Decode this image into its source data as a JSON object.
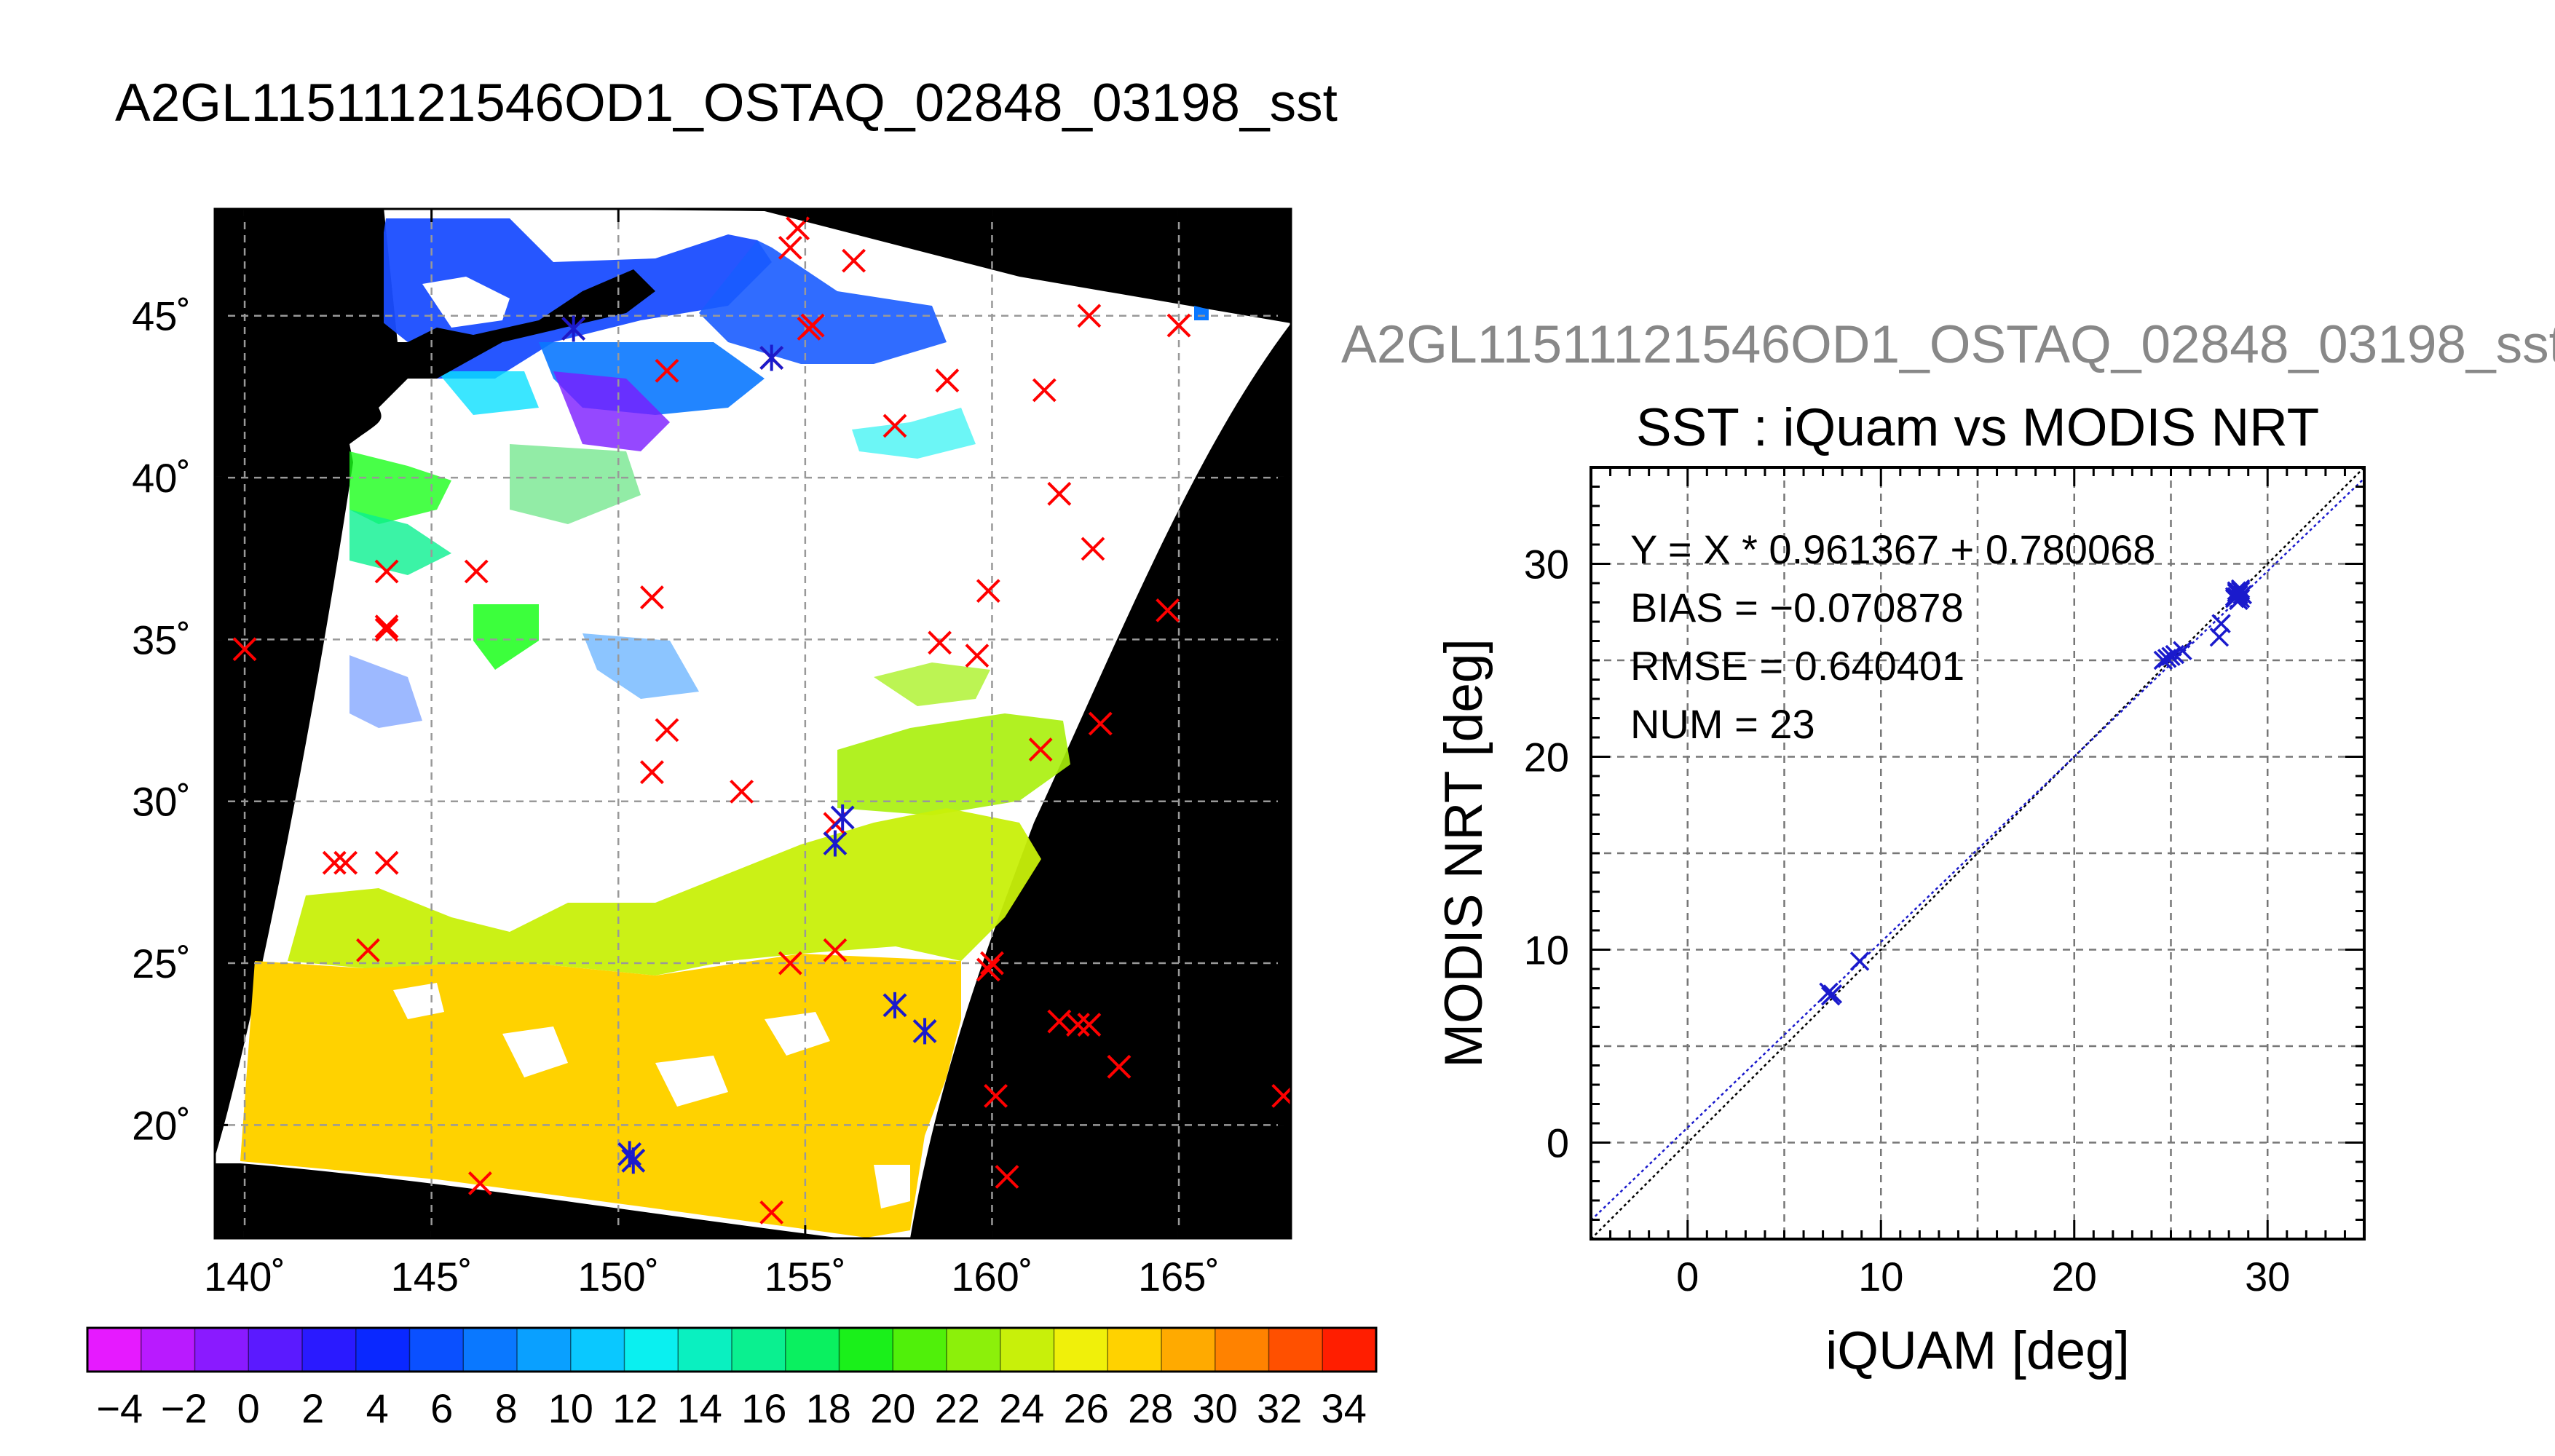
{
  "title": "A2GL11511121546OD1_OSTAQ_02848_03198_sst",
  "side_title": "A2GL11511121546OD1_OSTAQ_02848_03198_sst",
  "map": {
    "lon_ticks": [
      "140˚",
      "145˚",
      "150˚",
      "155˚",
      "160˚",
      "165˚"
    ],
    "lat_ticks": [
      "20˚",
      "25˚",
      "30˚",
      "35˚",
      "40˚",
      "45˚"
    ],
    "lon_range": [
      139.2,
      168.0
    ],
    "lat_range": [
      16.5,
      48.3
    ],
    "colors": {
      "background": "#000000",
      "land": "#000000",
      "cloud": "#ffffff",
      "marker_red": "#ff0000",
      "marker_blue": "#1a1acc"
    },
    "red_markers": [
      [
        154.8,
        47.7
      ],
      [
        154.6,
        47.1
      ],
      [
        156.3,
        46.7
      ],
      [
        155.2,
        44.7
      ],
      [
        155.1,
        44.6
      ],
      [
        148.8,
        44.6
      ],
      [
        162.6,
        45.0
      ],
      [
        165.0,
        44.7
      ],
      [
        154.1,
        43.7
      ],
      [
        151.3,
        43.3
      ],
      [
        158.8,
        43.0
      ],
      [
        161.4,
        42.7
      ],
      [
        157.4,
        41.6
      ],
      [
        161.8,
        39.5
      ],
      [
        162.7,
        37.8
      ],
      [
        143.8,
        37.1
      ],
      [
        146.2,
        37.1
      ],
      [
        150.9,
        36.3
      ],
      [
        159.9,
        36.5
      ],
      [
        143.8,
        35.4
      ],
      [
        143.8,
        35.3
      ],
      [
        164.7,
        35.9
      ],
      [
        140.0,
        34.7
      ],
      [
        158.6,
        34.9
      ],
      [
        159.6,
        34.5
      ],
      [
        151.3,
        32.2
      ],
      [
        162.9,
        32.4
      ],
      [
        161.3,
        31.6
      ],
      [
        150.9,
        30.9
      ],
      [
        153.3,
        30.3
      ],
      [
        142.4,
        28.1
      ],
      [
        142.7,
        28.1
      ],
      [
        143.8,
        28.1
      ],
      [
        155.8,
        29.3
      ],
      [
        143.3,
        25.4
      ],
      [
        154.6,
        25.0
      ],
      [
        155.8,
        25.4
      ],
      [
        160.0,
        25.0
      ],
      [
        159.9,
        24.8
      ],
      [
        161.8,
        23.2
      ],
      [
        162.3,
        23.1
      ],
      [
        162.6,
        23.1
      ],
      [
        163.4,
        21.8
      ],
      [
        167.8,
        20.9
      ],
      [
        160.1,
        20.9
      ],
      [
        160.4,
        18.4
      ],
      [
        146.3,
        18.2
      ],
      [
        154.1,
        17.3
      ]
    ],
    "blue_markers": [
      [
        148.8,
        44.6
      ],
      [
        154.1,
        43.7
      ],
      [
        156.0,
        29.5
      ],
      [
        155.8,
        28.7
      ],
      [
        157.4,
        23.7
      ],
      [
        158.2,
        22.9
      ],
      [
        150.3,
        19.1
      ],
      [
        150.4,
        18.9
      ]
    ]
  },
  "colorbar": {
    "tick_labels": [
      "−4",
      "−2",
      "0",
      "2",
      "4",
      "6",
      "8",
      "10",
      "12",
      "14",
      "16",
      "18",
      "20",
      "22",
      "24",
      "26",
      "28",
      "30",
      "32",
      "34"
    ],
    "min": -5,
    "max": 35,
    "step": 2,
    "segment_colors": [
      "#e61aff",
      "#b91aff",
      "#8a1aff",
      "#5b1aff",
      "#2a1aff",
      "#0a28ff",
      "#0a50ff",
      "#0a78ff",
      "#0aa0ff",
      "#0ac8ff",
      "#0af0f0",
      "#0af0c0",
      "#0af090",
      "#0af060",
      "#1af01a",
      "#50f00a",
      "#8cf00a",
      "#c8f00a",
      "#f0f00a",
      "#ffd200",
      "#ffaa00",
      "#ff8200",
      "#ff5000",
      "#ff1e00"
    ]
  },
  "chart_data": {
    "type": "scatter",
    "title": "SST : iQuam vs MODIS NRT",
    "xlabel": "iQUAM [deg]",
    "ylabel": "MODIS NRT [deg]",
    "xlim": [
      -5,
      35
    ],
    "ylim": [
      -5,
      35
    ],
    "x_ticks": [
      "0",
      "10",
      "20",
      "30"
    ],
    "y_ticks": [
      "0",
      "10",
      "20",
      "30"
    ],
    "grid": true,
    "annotations": [
      "Y = X * 0.961367 + 0.780068",
      "BIAS = −0.070878",
      "RMSE = 0.640401",
      "NUM = 23"
    ],
    "fit": {
      "slope": 0.961367,
      "intercept": 0.780068
    },
    "points": [
      [
        7.3,
        7.8
      ],
      [
        7.5,
        7.7
      ],
      [
        8.9,
        9.4
      ],
      [
        24.6,
        25.0
      ],
      [
        25.0,
        25.2
      ],
      [
        25.6,
        25.5
      ],
      [
        27.5,
        26.2
      ],
      [
        27.6,
        26.9
      ],
      [
        28.3,
        28.3
      ],
      [
        28.5,
        28.5
      ],
      [
        28.6,
        28.7
      ],
      [
        28.5,
        28.1
      ],
      [
        28.4,
        28.6
      ],
      [
        28.7,
        28.4
      ],
      [
        28.3,
        28.2
      ],
      [
        24.8,
        25.1
      ],
      [
        25.2,
        25.3
      ],
      [
        28.6,
        28.2
      ],
      [
        28.4,
        28.5
      ],
      [
        7.4,
        7.6
      ],
      [
        28.5,
        28.4
      ],
      [
        28.6,
        28.6
      ],
      [
        28.4,
        28.3
      ]
    ]
  }
}
